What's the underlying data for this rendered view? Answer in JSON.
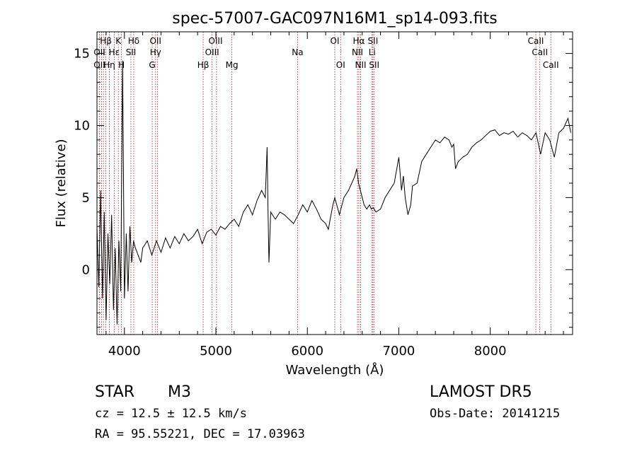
{
  "chart_data": {
    "type": "line",
    "title": "spec-57007-GAC097N16M1_sp14-093.fits",
    "xlabel": "Wavelength (Å)",
    "ylabel": "Flux (relative)",
    "xlim": [
      3700,
      8900
    ],
    "ylim": [
      -4.5,
      16.5
    ],
    "x_ticks": [
      4000,
      5000,
      6000,
      7000,
      8000
    ],
    "y_ticks": [
      0,
      5,
      10,
      15
    ],
    "grid": false,
    "series": [
      {
        "x": [
          3700,
          3720,
          3740,
          3760,
          3780,
          3800,
          3820,
          3840,
          3860,
          3880,
          3900,
          3920,
          3940,
          3960,
          3980,
          4000,
          4020,
          4040,
          4060,
          4080,
          4100,
          4120,
          4150,
          4180,
          4200,
          4250,
          4300,
          4350,
          4400,
          4450,
          4500,
          4550,
          4600,
          4650,
          4700,
          4750,
          4800,
          4850,
          4900,
          4950,
          5000,
          5050,
          5100,
          5150,
          5200,
          5250,
          5300,
          5350,
          5400,
          5450,
          5500,
          5540,
          5560,
          5570,
          5580,
          5600,
          5650,
          5700,
          5750,
          5800,
          5850,
          5900,
          5950,
          6000,
          6050,
          6100,
          6150,
          6200,
          6230,
          6250,
          6280,
          6300,
          6330,
          6350,
          6400,
          6450,
          6500,
          6520,
          6540,
          6560,
          6580,
          6600,
          6620,
          6650,
          6680,
          6700,
          6720,
          6750,
          6800,
          6850,
          6900,
          6950,
          7000,
          7030,
          7050,
          7070,
          7100,
          7130,
          7150,
          7200,
          7250,
          7300,
          7350,
          7400,
          7450,
          7500,
          7550,
          7580,
          7600,
          7620,
          7650,
          7700,
          7750,
          7800,
          7850,
          7900,
          7950,
          8000,
          8050,
          8100,
          8150,
          8200,
          8250,
          8300,
          8350,
          8400,
          8450,
          8500,
          8550,
          8600,
          8650,
          8700,
          8750,
          8800,
          8850,
          8880
        ],
        "y": [
          3.0,
          -1.2,
          5.5,
          -2.0,
          4.0,
          -3.5,
          2.5,
          -1.0,
          3.8,
          -2.8,
          1.5,
          -3.8,
          2.0,
          -1.5,
          14.5,
          -2.0,
          2.5,
          -1.5,
          3.0,
          0.5,
          2.0,
          1.5,
          1.0,
          0.5,
          1.5,
          2.0,
          1.0,
          2.0,
          1.2,
          2.2,
          1.5,
          2.3,
          1.8,
          2.5,
          2.0,
          2.3,
          2.8,
          1.8,
          2.6,
          2.8,
          2.4,
          3.0,
          2.8,
          3.2,
          3.5,
          3.0,
          4.0,
          4.5,
          3.8,
          4.8,
          5.5,
          5.0,
          8.5,
          4.0,
          0.5,
          4.0,
          3.5,
          4.0,
          3.8,
          3.5,
          3.2,
          3.8,
          4.5,
          4.0,
          4.8,
          4.2,
          3.5,
          3.2,
          2.8,
          3.5,
          4.5,
          5.0,
          4.3,
          3.8,
          5.0,
          5.5,
          6.2,
          6.5,
          7.0,
          6.0,
          5.5,
          5.0,
          4.5,
          4.2,
          4.5,
          4.2,
          4.3,
          4.0,
          4.2,
          5.0,
          5.5,
          6.0,
          7.8,
          5.5,
          6.5,
          5.0,
          3.8,
          4.5,
          5.8,
          6.0,
          7.5,
          8.0,
          8.5,
          9.0,
          8.8,
          9.2,
          9.0,
          8.5,
          8.7,
          7.0,
          7.5,
          7.8,
          8.0,
          8.5,
          8.8,
          9.0,
          9.3,
          9.6,
          9.7,
          9.3,
          9.5,
          9.4,
          9.6,
          9.2,
          9.5,
          9.3,
          9.0,
          9.5,
          8.0,
          9.5,
          9.0,
          7.8,
          9.5,
          9.8,
          10.5,
          9.5
        ]
      }
    ],
    "lines": [
      {
        "label": "Hβ",
        "x": 3797,
        "row": 1
      },
      {
        "label": "K",
        "x": 3934,
        "row": 1
      },
      {
        "label": "Hδ",
        "x": 4102,
        "row": 1
      },
      {
        "label": "OII",
        "x": 4340,
        "row": 1
      },
      {
        "label": "OIII",
        "x": 4996,
        "row": 1
      },
      {
        "label": "OI",
        "x": 6300,
        "row": 1
      },
      {
        "label": "Hα",
        "x": 6563,
        "row": 1
      },
      {
        "label": "SII",
        "x": 6717,
        "row": 1
      },
      {
        "label": "CaII",
        "x": 8498,
        "row": 1
      },
      {
        "label": "OII",
        "x": 3727,
        "row": 2
      },
      {
        "label": "Hε",
        "x": 3889,
        "row": 2
      },
      {
        "label": "SII",
        "x": 4071,
        "row": 2
      },
      {
        "label": "Hγ",
        "x": 4341,
        "row": 2
      },
      {
        "label": "OIII",
        "x": 4959,
        "row": 2
      },
      {
        "label": "Na",
        "x": 5893,
        "row": 2
      },
      {
        "label": "NII",
        "x": 6548,
        "row": 2
      },
      {
        "label": "Li",
        "x": 6708,
        "row": 2
      },
      {
        "label": "CaII",
        "x": 8542,
        "row": 2
      },
      {
        "label": "OII",
        "x": 3727,
        "row": 3
      },
      {
        "label": "Hη",
        "x": 3835,
        "row": 3
      },
      {
        "label": "H",
        "x": 3968,
        "row": 3
      },
      {
        "label": "G",
        "x": 4304,
        "row": 3
      },
      {
        "label": "Hβ",
        "x": 4861,
        "row": 3
      },
      {
        "label": "Mg",
        "x": 5175,
        "row": 3
      },
      {
        "label": "OI",
        "x": 6364,
        "row": 3
      },
      {
        "label": "NII",
        "x": 6583,
        "row": 3
      },
      {
        "label": "SII",
        "x": 6731,
        "row": 3
      },
      {
        "label": "CaII",
        "x": 8662,
        "row": 3
      }
    ],
    "line_positions": [
      3727,
      3750,
      3771,
      3797,
      3835,
      3889,
      3934,
      3968,
      4071,
      4102,
      4304,
      4341,
      4363,
      4861,
      4959,
      5007,
      5175,
      5893,
      6300,
      6364,
      6548,
      6563,
      6583,
      6708,
      6717,
      6731,
      8498,
      8542,
      8662
    ],
    "line_color": "#a31a1a",
    "series_color": "#000000"
  },
  "info": {
    "object_class": "STAR",
    "subclass": "M3",
    "survey": "LAMOST DR5",
    "cz": "cz = 12.5 ± 12.5 km/s",
    "obs_date": "Obs-Date: 20141215",
    "coords": "RA =  95.55221, DEC =  17.03963"
  }
}
